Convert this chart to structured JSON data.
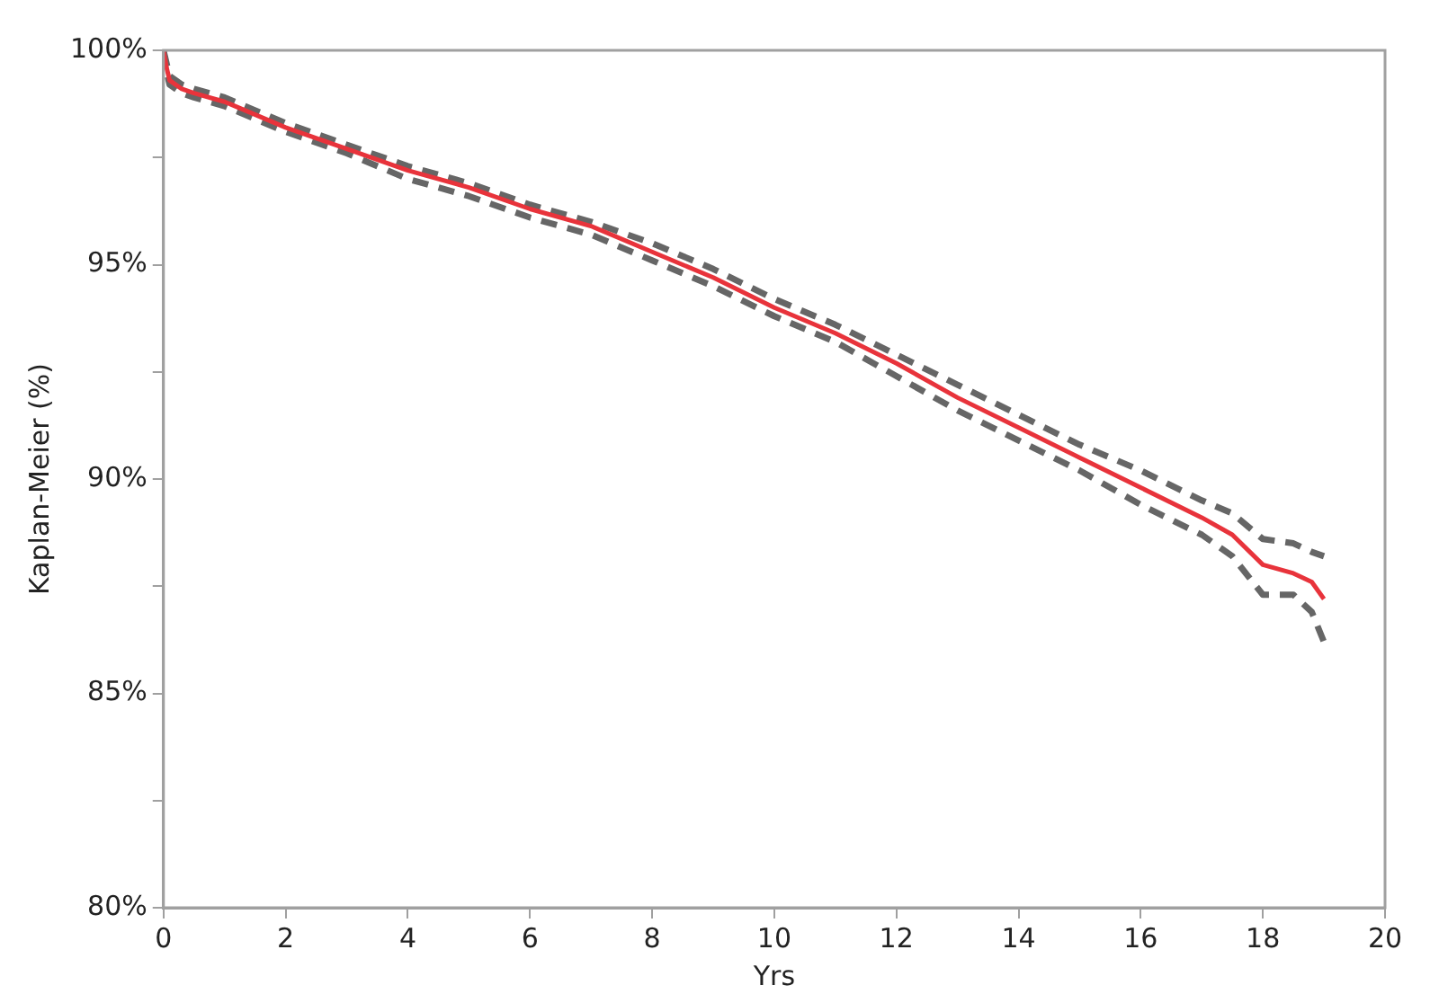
{
  "chart_data": {
    "type": "line",
    "xlabel": "Yrs",
    "ylabel": "Kaplan-Meier (%)",
    "x": [
      0,
      0.05,
      0.1,
      0.3,
      0.5,
      1,
      2,
      3,
      4,
      5,
      6,
      7,
      8,
      9,
      10,
      11,
      12,
      13,
      14,
      15,
      16,
      17,
      17.5,
      18,
      18.5,
      18.8,
      19
    ],
    "series": [
      {
        "color": "#666666",
        "line_style": "dashed",
        "values": [
          100,
          99.5,
          99.2,
          99.0,
          98.9,
          98.7,
          98.1,
          97.6,
          97.0,
          96.6,
          96.1,
          95.7,
          95.1,
          94.5,
          93.8,
          93.2,
          92.4,
          91.6,
          90.9,
          90.2,
          89.4,
          88.7,
          88.2,
          87.3,
          87.3,
          86.9,
          86.2
        ]
      },
      {
        "color": "#666666",
        "line_style": "dashed",
        "values": [
          100,
          99.7,
          99.4,
          99.2,
          99.1,
          98.9,
          98.3,
          97.8,
          97.3,
          96.9,
          96.4,
          96.0,
          95.5,
          94.9,
          94.2,
          93.6,
          92.9,
          92.2,
          91.5,
          90.8,
          90.2,
          89.5,
          89.2,
          88.6,
          88.5,
          88.3,
          88.2
        ]
      },
      {
        "color": "#e8333b",
        "line_style": "solid",
        "values": [
          100,
          99.6,
          99.3,
          99.1,
          99.0,
          98.8,
          98.2,
          97.7,
          97.2,
          96.8,
          96.3,
          95.9,
          95.3,
          94.7,
          94.0,
          93.4,
          92.7,
          91.9,
          91.2,
          90.5,
          89.8,
          89.1,
          88.7,
          88.0,
          87.8,
          87.6,
          87.2
        ]
      }
    ],
    "xlim": [
      0,
      20
    ],
    "xticks": [
      0,
      2,
      4,
      6,
      8,
      10,
      12,
      14,
      16,
      18,
      20
    ],
    "ylim": [
      80,
      100
    ],
    "yticks": [
      {
        "value": 80,
        "label": "80%"
      },
      {
        "value": 82.5,
        "label": null
      },
      {
        "value": 85,
        "label": "85%"
      },
      {
        "value": 87.5,
        "label": null
      },
      {
        "value": 90,
        "label": "90%"
      },
      {
        "value": 92.5,
        "label": null
      },
      {
        "value": 95,
        "label": "95%"
      },
      {
        "value": 97.5,
        "label": null
      },
      {
        "value": 100,
        "label": "100%"
      }
    ],
    "grid": false,
    "legend": false,
    "marker": "none"
  }
}
